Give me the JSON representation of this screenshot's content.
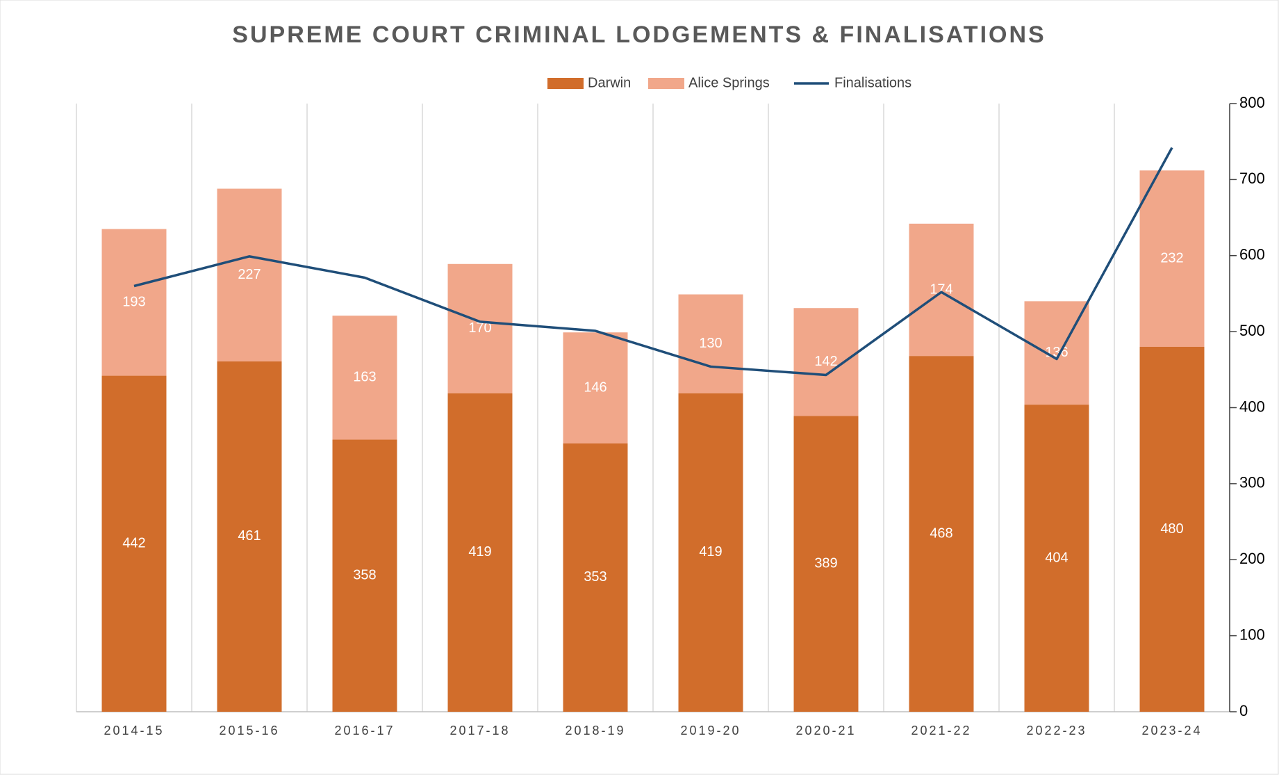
{
  "chart_data": {
    "type": "bar",
    "stacked": true,
    "title": "SUPREME COURT CRIMINAL LODGEMENTS & FINALISATIONS",
    "categories": [
      "2014-15",
      "2015-16",
      "2016-17",
      "2017-18",
      "2018-19",
      "2019-20",
      "2020-21",
      "2021-22",
      "2022-23",
      "2023-24"
    ],
    "series": [
      {
        "name": "Darwin",
        "type": "bar",
        "color": "#d16d2b",
        "values": [
          442,
          461,
          358,
          419,
          353,
          419,
          389,
          468,
          404,
          480
        ]
      },
      {
        "name": "Alice Springs",
        "type": "bar",
        "color": "#f1a78a",
        "values": [
          193,
          227,
          163,
          170,
          146,
          130,
          142,
          174,
          136,
          232
        ]
      },
      {
        "name": "Finalisations",
        "type": "line",
        "color": "#1f4e79",
        "values": [
          560,
          599,
          571,
          513,
          501,
          454,
          443,
          552,
          464,
          742
        ]
      }
    ],
    "ylim": [
      0,
      800
    ],
    "yticks": [
      0,
      100,
      200,
      300,
      400,
      500,
      600,
      700,
      800
    ],
    "axis_side": "right",
    "legend": "top"
  }
}
